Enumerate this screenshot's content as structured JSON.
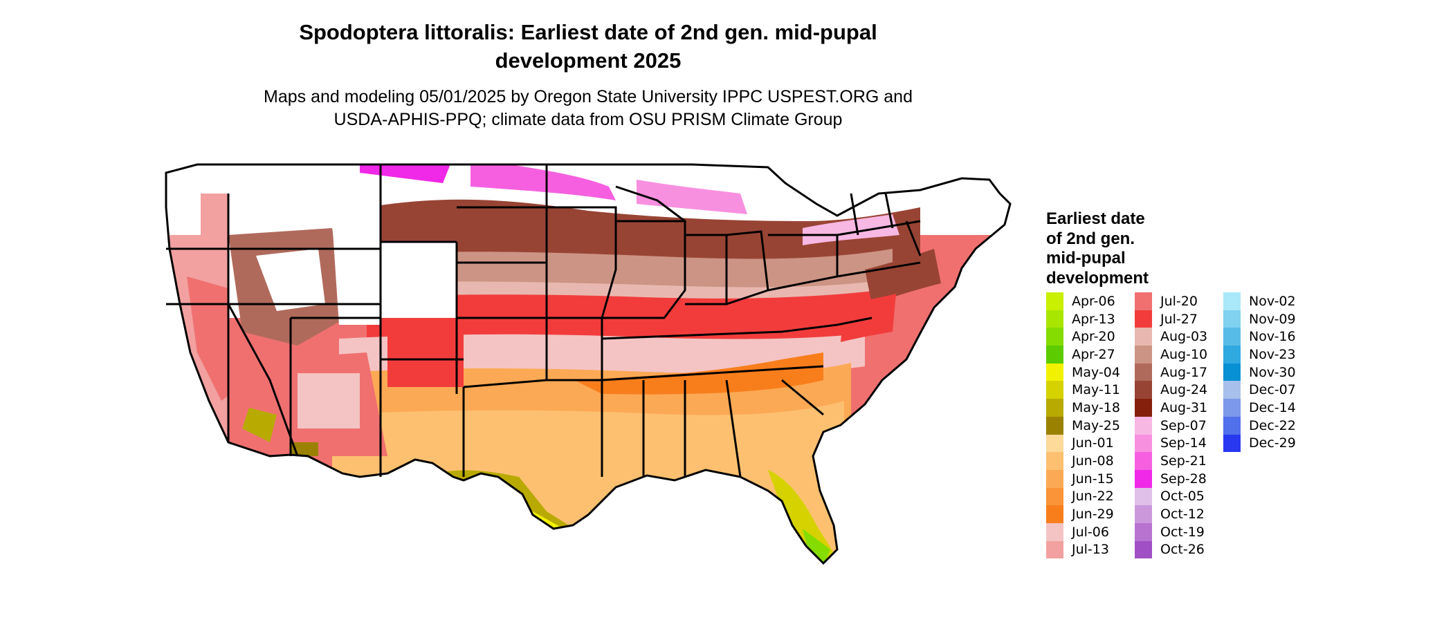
{
  "title_line1": "Spodoptera littoralis: Earliest date of 2nd gen. mid-pupal",
  "title_line2": "development 2025",
  "subtitle_line1": "Maps and modeling 05/01/2025 by Oregon State University IPPC USPEST.ORG and",
  "subtitle_line2": "USDA-APHIS-PPQ; climate data from OSU PRISM Climate Group",
  "legend": {
    "title_lines": [
      "Earliest date",
      "of 2nd gen.",
      "mid-pupal",
      "development"
    ],
    "columns": [
      [
        {
          "label": "Apr-06",
          "color": "#c8f000"
        },
        {
          "label": "Apr-13",
          "color": "#a8e600"
        },
        {
          "label": "Apr-20",
          "color": "#84dc00"
        },
        {
          "label": "Apr-27",
          "color": "#5ccc00"
        },
        {
          "label": "May-04",
          "color": "#f2f200"
        },
        {
          "label": "May-11",
          "color": "#d6d200"
        },
        {
          "label": "May-18",
          "color": "#b8aa00"
        },
        {
          "label": "May-25",
          "color": "#9a8200"
        },
        {
          "label": "Jun-01",
          "color": "#fdd99a"
        },
        {
          "label": "Jun-08",
          "color": "#fdc070"
        },
        {
          "label": "Jun-15",
          "color": "#fca955"
        },
        {
          "label": "Jun-22",
          "color": "#fb9438"
        },
        {
          "label": "Jun-29",
          "color": "#f87e1c"
        },
        {
          "label": "Jul-06",
          "color": "#f4c4c4"
        },
        {
          "label": "Jul-13",
          "color": "#f2a0a0"
        }
      ],
      [
        {
          "label": "Jul-20",
          "color": "#f07070"
        },
        {
          "label": "Jul-27",
          "color": "#f23c3c"
        },
        {
          "label": "Aug-03",
          "color": "#e8b8b0"
        },
        {
          "label": "Aug-10",
          "color": "#cc9484"
        },
        {
          "label": "Aug-17",
          "color": "#b06a5c"
        },
        {
          "label": "Aug-24",
          "color": "#984434"
        },
        {
          "label": "Aug-31",
          "color": "#84200c"
        },
        {
          "label": "Sep-07",
          "color": "#f8b8e4"
        },
        {
          "label": "Sep-14",
          "color": "#f890e0"
        },
        {
          "label": "Sep-21",
          "color": "#f660e0"
        },
        {
          "label": "Sep-28",
          "color": "#f028e8"
        },
        {
          "label": "Oct-05",
          "color": "#e0c0e8"
        },
        {
          "label": "Oct-12",
          "color": "#cc98dc"
        },
        {
          "label": "Oct-19",
          "color": "#b872d0"
        },
        {
          "label": "Oct-26",
          "color": "#a050c4"
        }
      ],
      [
        {
          "label": "Nov-02",
          "color": "#a8e8f8"
        },
        {
          "label": "Nov-09",
          "color": "#80d0f0"
        },
        {
          "label": "Nov-16",
          "color": "#58bce8"
        },
        {
          "label": "Nov-23",
          "color": "#30a8e0"
        },
        {
          "label": "Nov-30",
          "color": "#0890d4"
        },
        {
          "label": "Dec-07",
          "color": "#a8c0ec"
        },
        {
          "label": "Dec-14",
          "color": "#7c98e8"
        },
        {
          "label": "Dec-22",
          "color": "#5070ec"
        },
        {
          "label": "Dec-29",
          "color": "#2838f0"
        }
      ]
    ]
  }
}
